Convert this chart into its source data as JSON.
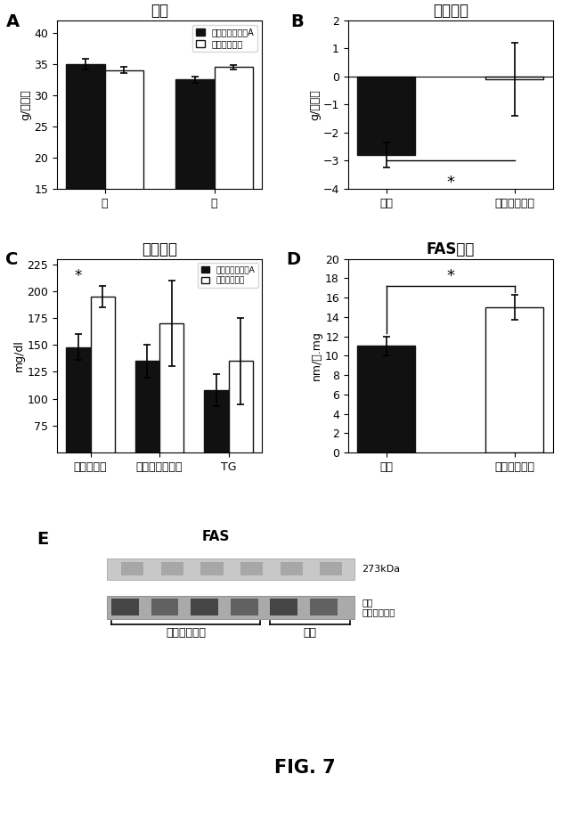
{
  "panel_A": {
    "title": "体重",
    "ylabel": "g/マウス",
    "xlabel_ticks": [
      "前",
      "後"
    ],
    "dark_values": [
      35.0,
      32.5
    ],
    "light_values": [
      34.0,
      34.5
    ],
    "dark_errors": [
      0.8,
      0.5
    ],
    "light_errors": [
      0.5,
      0.4
    ],
    "ylim": [
      15,
      42
    ],
    "yticks": [
      15,
      20,
      25,
      30,
      35,
      40
    ],
    "legend_dark": "ファトスタチンA",
    "legend_light": "コントロール"
  },
  "panel_B": {
    "title": "体重減少",
    "ylabel": "g/マウス",
    "xlabel_ticks": [
      "処置",
      "コントロール"
    ],
    "dark_value": -2.8,
    "light_value": -0.1,
    "dark_error": 0.45,
    "light_error": 1.3,
    "ylim": [
      -4,
      2
    ],
    "yticks": [
      -4,
      -3,
      -2,
      -1,
      0,
      1,
      2
    ]
  },
  "panel_C": {
    "title": "血液成分",
    "ylabel": "mg/dl",
    "xlabel_ticks": [
      "グルコース",
      "コレステロール",
      "TG"
    ],
    "dark_values": [
      148,
      135,
      108
    ],
    "light_values": [
      195,
      170,
      135
    ],
    "dark_errors": [
      12,
      15,
      15
    ],
    "light_errors": [
      10,
      40,
      40
    ],
    "ylim": [
      50,
      230
    ],
    "yticks": [
      75,
      100,
      125,
      150,
      175,
      200,
      225
    ],
    "legend_dark": "ファトスタチンA",
    "legend_light": "コントロール"
  },
  "panel_D": {
    "title": "FAS活性",
    "ylabel": "nm/分.mg",
    "xlabel_ticks": [
      "処置",
      "コントロール"
    ],
    "dark_value": 11.0,
    "light_value": 15.0,
    "dark_error": 1.0,
    "light_error": 1.3,
    "ylim": [
      0,
      20
    ],
    "yticks": [
      0,
      2,
      4,
      6,
      8,
      10,
      12,
      14,
      16,
      18,
      20
    ]
  },
  "panel_E": {
    "title": "FAS",
    "label_273": "273kDa",
    "label_load": "負荷\nコントロール",
    "bracket_left": "コントロール",
    "bracket_right": "処置"
  },
  "colors": {
    "dark": "#111111",
    "light": "#ffffff",
    "edge": "#111111"
  },
  "fig_label": "FIG. 7"
}
